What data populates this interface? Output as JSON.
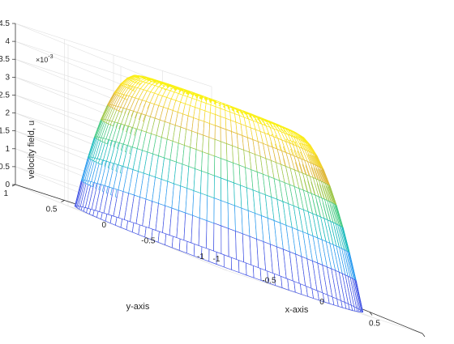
{
  "chart_data": {
    "type": "surface",
    "surface": "mesh of a tapered circular plateau over the unit disk; u rises steeply from 0 at the rim (r = 1) to about 4.3e-3 on the flat top (r <= ~0.6)",
    "zlabel": "velocity field, u",
    "xlabel": "x-axis",
    "ylabel": "y-axis",
    "zexponent_label": "×10",
    "zexponent": "-3",
    "xlim": [
      -1,
      1
    ],
    "ylim": [
      -1,
      1
    ],
    "zlim": [
      0,
      0.0045
    ],
    "xticks": [
      "-1",
      "-0.5",
      "0",
      "0.5",
      "1"
    ],
    "yticks": [
      "-1",
      "-0.5",
      "0",
      "0.5",
      "1"
    ],
    "zticks": [
      "0",
      "0.5",
      "1",
      "1.5",
      "2",
      "2.5",
      "3",
      "3.5",
      "4",
      "4.5"
    ],
    "z_max": 0.0043,
    "grid": true,
    "colormap": "parula",
    "colormap_stops": [
      "#3e26a8",
      "#4367fd",
      "#2f9bf0",
      "#1ab7c8",
      "#2bc99a",
      "#8ccb4e",
      "#e0b83a",
      "#fbe124",
      "#f9fb0e"
    ]
  }
}
